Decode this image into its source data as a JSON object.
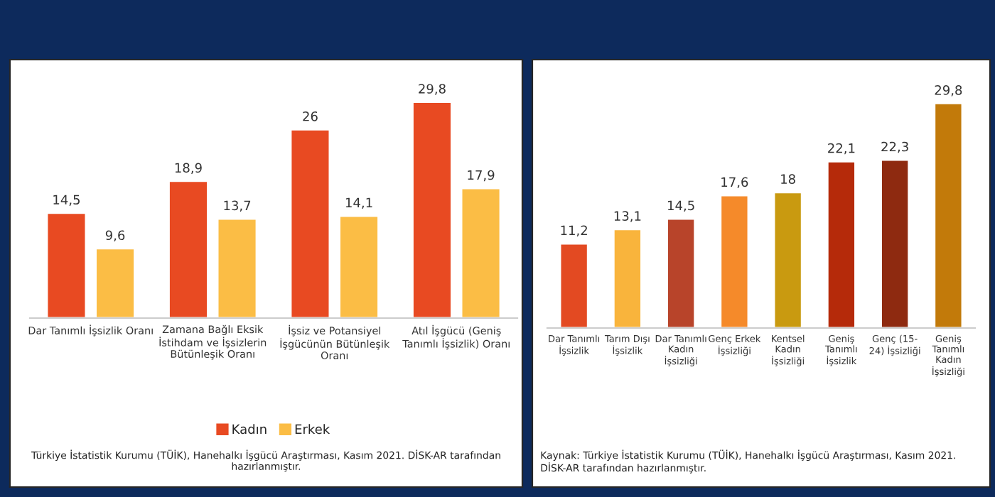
{
  "chart_data": [
    {
      "type": "bar",
      "categories": [
        "Dar Tanımlı İşsizlik Oranı",
        "Zamana Bağlı Eksik\nİstihdam ve İşsizlerin\nBütünleşik Oranı",
        "İşsiz ve Potansiyel\nİşgücünün Bütünleşik\nOranı",
        "Atıl İşgücü (Geniş\nTanımlı İşsizlik) Oranı"
      ],
      "series": [
        {
          "name": "Kadın",
          "color": "#e84a22",
          "values": [
            14.5,
            18.9,
            26,
            29.8
          ],
          "value_labels": [
            "14,5",
            "18,9",
            "26",
            "29,8"
          ]
        },
        {
          "name": "Erkek",
          "color": "#fbbd45",
          "values": [
            9.6,
            13.7,
            14.1,
            17.9
          ],
          "value_labels": [
            "9,6",
            "13,7",
            "14,1",
            "17,9"
          ]
        }
      ],
      "legend": "bottom",
      "annotations": [
        "Türkiye İstatistik Kurumu (TÜİK), Hanehalkı İşgücü Araştırması, Kasım 2021. DİSK-AR tarafından hazırlanmıştır."
      ]
    },
    {
      "type": "bar",
      "categories": [
        "Dar Tanımlı\nİşsizlik",
        "Tarım Dışı\nİşsizlik",
        "Dar Tanımlı\nKadın\nİşsizliği",
        "Genç Erkek\nİşsizliği",
        "Kentsel\nKadın\nİşsizliği",
        "Geniş\nTanımlı\nİşsizlik",
        "Genç (15-\n24) İşsizliği",
        "Geniş\nTanımlı\nKadın\nİşsizliği"
      ],
      "values": [
        11.2,
        13.1,
        14.5,
        17.6,
        18,
        22.1,
        22.3,
        29.8
      ],
      "value_labels": [
        "11,2",
        "13,1",
        "14,5",
        "17,6",
        "18",
        "22,1",
        "22,3",
        "29,8"
      ],
      "colors": [
        "#e34a22",
        "#f9b43c",
        "#b8442a",
        "#f58a2a",
        "#c99a10",
        "#b52a0a",
        "#8e2a10",
        "#c27a0a"
      ],
      "annotations": [
        "Kaynak: Türkiye İstatistik Kurumu (TÜİK), Hanehalkı İşgücü Araştırması, Kasım 2021. DİSK-AR tarafından hazırlanmıştır."
      ]
    }
  ]
}
